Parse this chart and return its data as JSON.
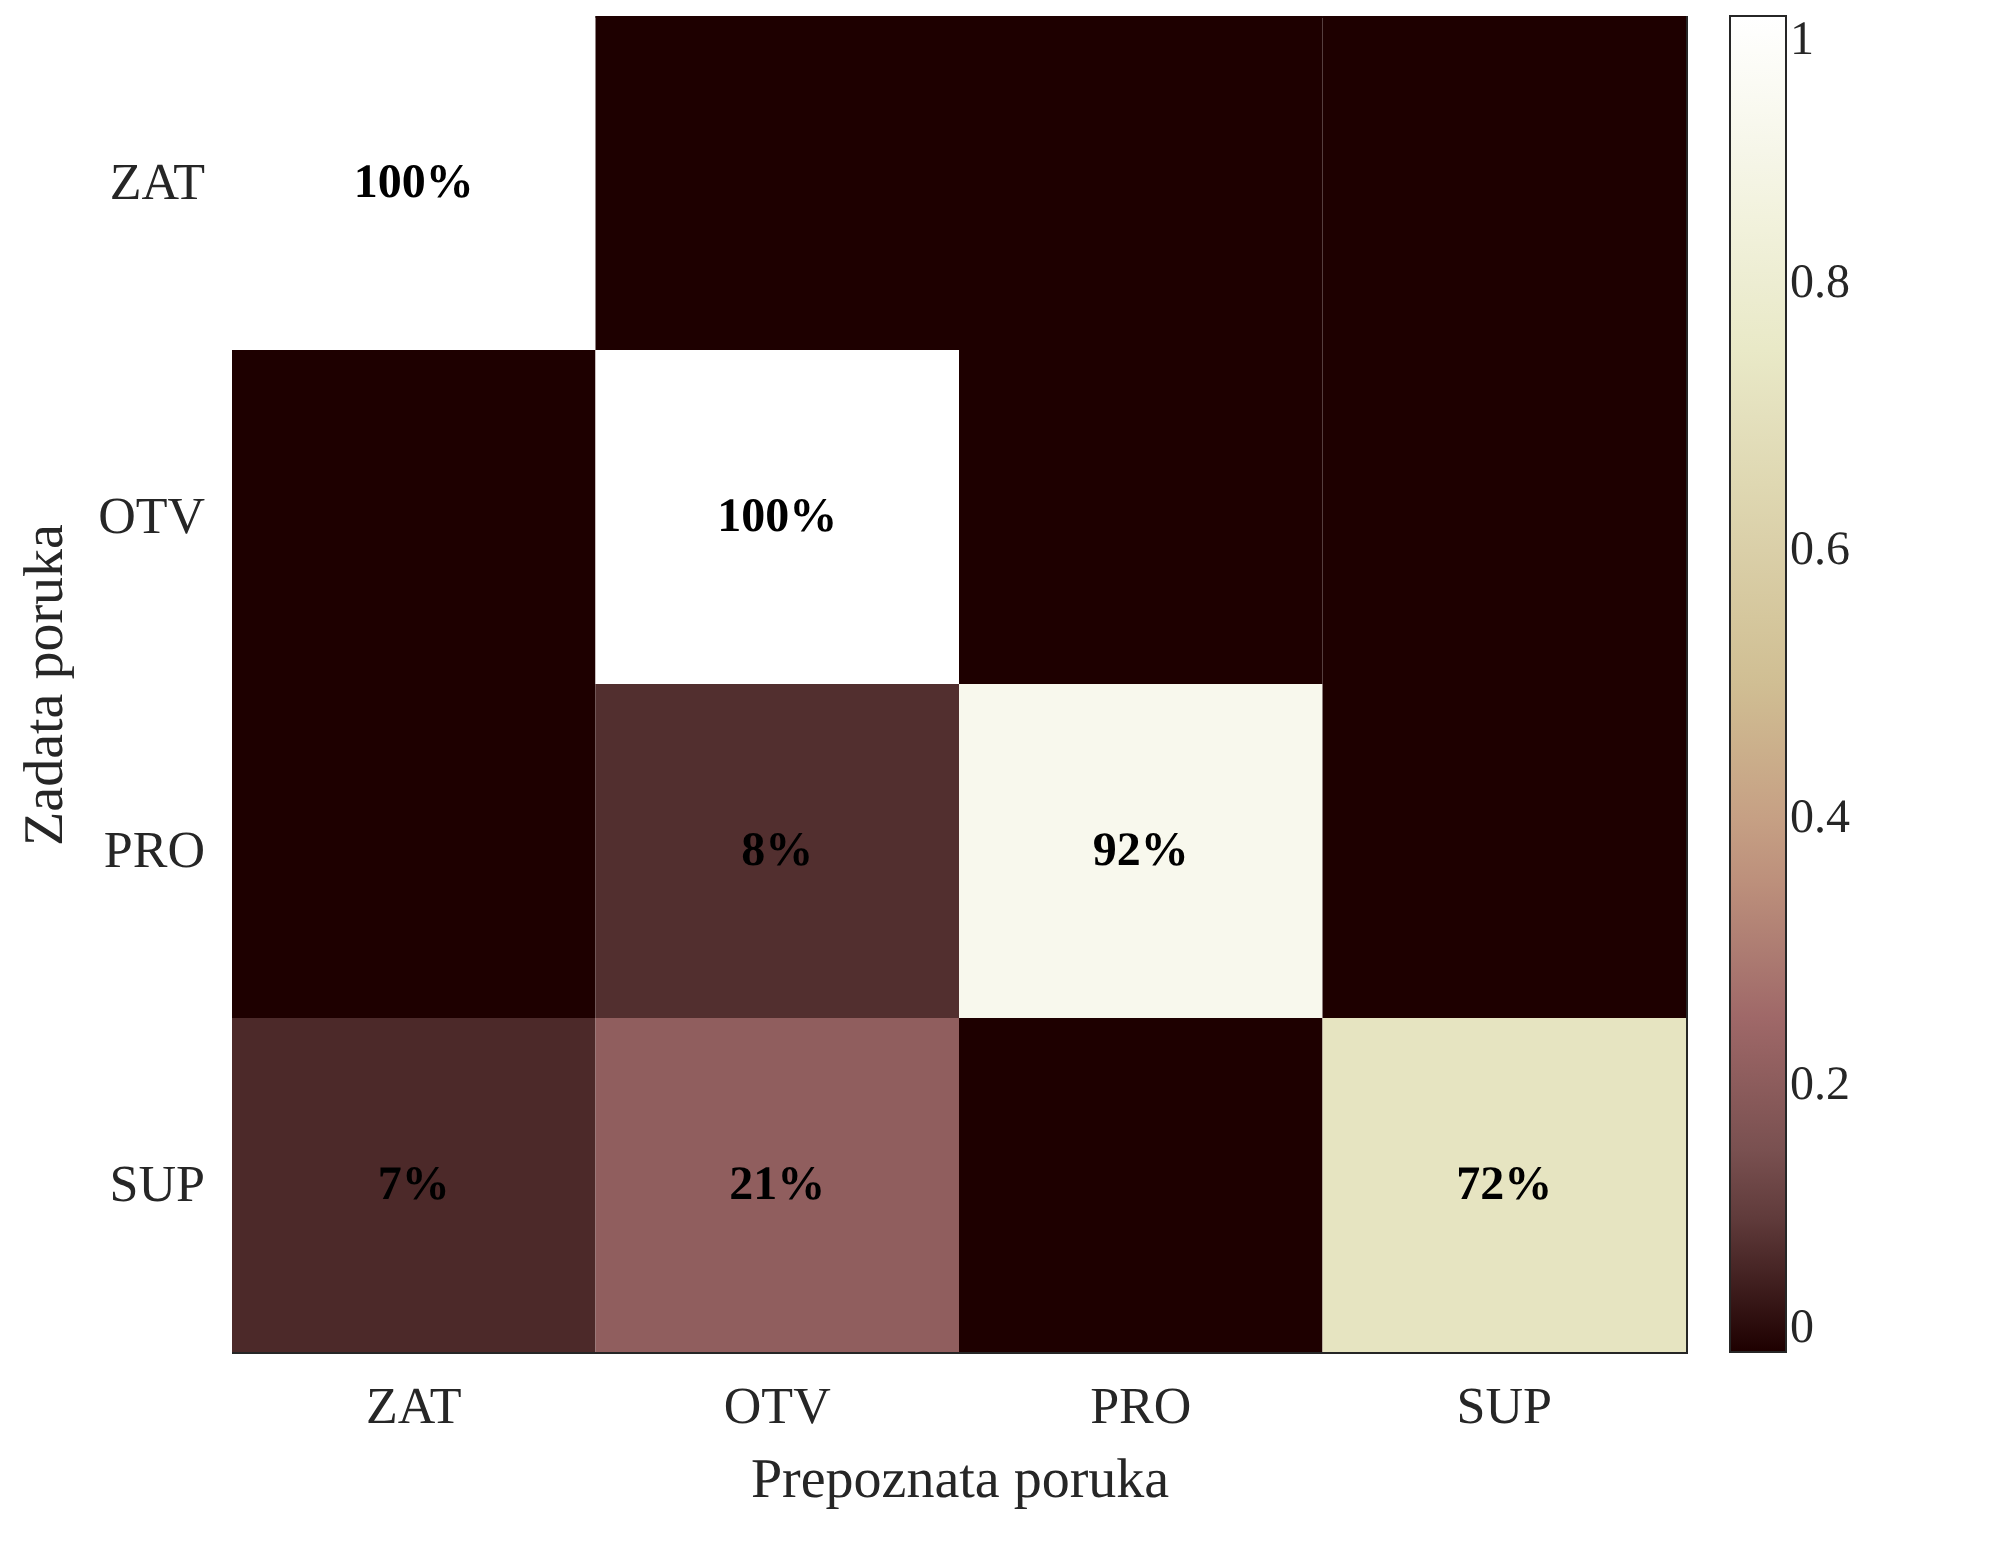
{
  "chart_data": {
    "type": "heatmap",
    "xlabel": "Prepoznata poruka",
    "ylabel": "Zadata poruka",
    "categories": [
      "ZAT",
      "OTV",
      "PRO",
      "SUP"
    ],
    "y_categories": [
      "ZAT",
      "OTV",
      "PRO",
      "SUP"
    ],
    "cells": [
      [
        1,
        0,
        0,
        0
      ],
      [
        0,
        1,
        0,
        0
      ],
      [
        0,
        0.08,
        0.92,
        0
      ],
      [
        0.07,
        0.21,
        0,
        0.72
      ]
    ],
    "cell_labels": [
      [
        "100%",
        null,
        null,
        null
      ],
      [
        null,
        "100%",
        null,
        null
      ],
      [
        null,
        "8%",
        "92%",
        null
      ],
      [
        "7%",
        "21%",
        null,
        "72%"
      ]
    ],
    "clim": [
      0,
      1
    ],
    "cticks": [
      0,
      0.2,
      0.4,
      0.6,
      0.8,
      1
    ]
  }
}
